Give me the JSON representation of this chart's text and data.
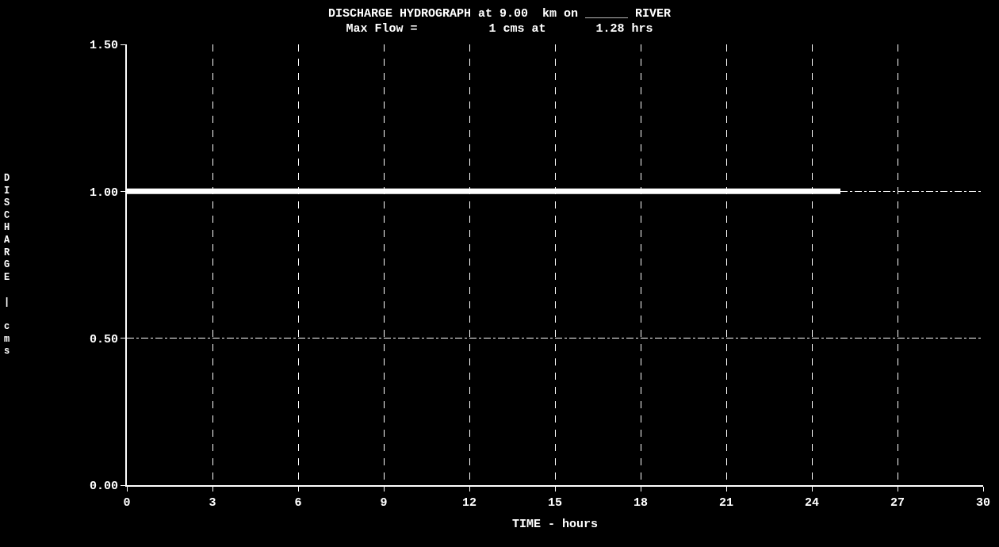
{
  "chart_data": {
    "type": "line",
    "title": "DISCHARGE HYDROGRAPH at 9.00  km on ______ RIVER",
    "subtitle": "Max Flow =          1 cms at       1.28 hrs",
    "xlabel": "TIME - hours",
    "ylabel": "DISCHARGE | cms",
    "x": [
      0,
      25
    ],
    "series": [
      {
        "color": "#ffffff",
        "values": [
          1,
          1
        ]
      }
    ],
    "xlim": [
      0,
      30
    ],
    "xticks": [
      0,
      3,
      6,
      9,
      12,
      15,
      18,
      21,
      24,
      27,
      30
    ],
    "ylim": [
      0,
      1.5
    ],
    "yticks": [
      {
        "value": 0,
        "label": "0.00"
      },
      {
        "value": 0.5,
        "label": "0.50"
      },
      {
        "value": 1,
        "label": "1.00"
      },
      {
        "value": 1.5,
        "label": "1.50"
      }
    ],
    "grid": true,
    "line_style": "solid",
    "marker": "none"
  }
}
